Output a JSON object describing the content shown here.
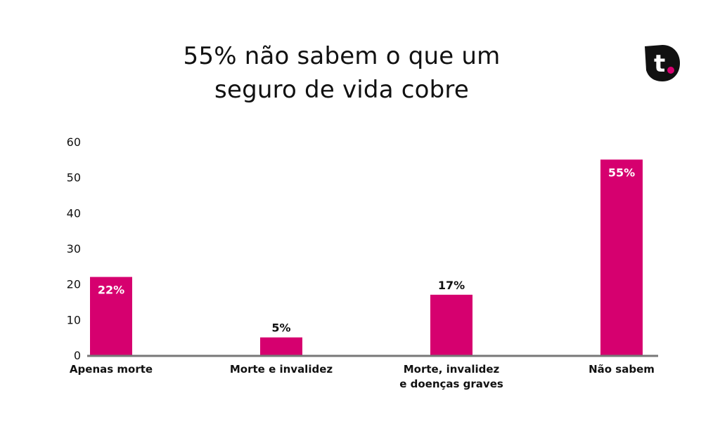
{
  "chart_data": {
    "type": "bar",
    "title": "55% não sabem o que um seguro de vida cobre",
    "title_lines": [
      "55% não sabem o que um",
      "seguro de vida cobre"
    ],
    "categories": [
      [
        "Apenas morte"
      ],
      [
        "Morte e invalidez"
      ],
      [
        "Morte, invalidez",
        "e doenças graves"
      ],
      [
        "Não sabem"
      ]
    ],
    "values": [
      22,
      5,
      17,
      55
    ],
    "data_labels": [
      "22%",
      "5%",
      "17%",
      "55%"
    ],
    "data_label_inside": [
      true,
      false,
      false,
      true
    ],
    "yticks": [
      "0",
      "10",
      "20",
      "30",
      "40",
      "50",
      "60"
    ],
    "ylim": [
      0,
      60
    ],
    "grid": false,
    "legend": "none",
    "bar_color": "#d6006f",
    "axis_color": "#777777"
  },
  "logo": {
    "letter": "t",
    "dot_color": "#d6006f",
    "bg_color": "#111111"
  }
}
